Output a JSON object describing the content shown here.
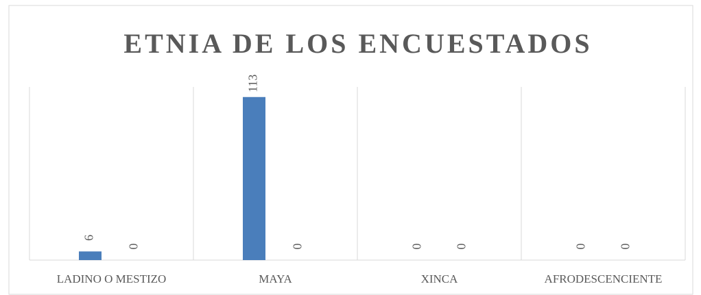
{
  "chart_data": {
    "type": "bar",
    "title": "ETNIA DE LOS ENCUESTADOS",
    "categories": [
      "LADINO O MESTIZO",
      "MAYA",
      "XINCA",
      "AFRODESCENCIENTE"
    ],
    "series": [
      {
        "color": "#4a7ebb",
        "values": [
          6,
          113,
          0,
          0
        ]
      },
      {
        "color": "#4a7ebb",
        "values": [
          0,
          0,
          0,
          0
        ]
      }
    ],
    "ylim": [
      0,
      120
    ]
  }
}
